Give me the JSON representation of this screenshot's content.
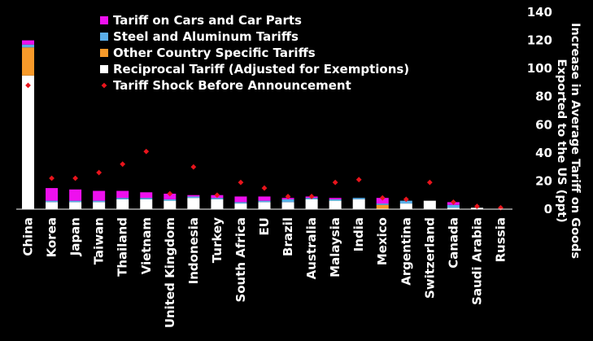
{
  "chart_data": {
    "type": "bar",
    "stacked": true,
    "ylabel": [
      "Increase in Average Tariff on Goods",
      "Exported to the US (ppt)"
    ],
    "ylim": [
      0,
      140
    ],
    "yticks": [
      0,
      20,
      40,
      60,
      80,
      100,
      120,
      140
    ],
    "axis_side": "right",
    "grid": false,
    "legend_position": "top-left",
    "categories": [
      "China",
      "Korea",
      "Japan",
      "Taiwan",
      "Thailand",
      "Vietnam",
      "United Kingdom",
      "Indonesia",
      "Turkey",
      "South Africa",
      "EU",
      "Brazil",
      "Australia",
      "Malaysia",
      "India",
      "Mexico",
      "Argentina",
      "Switzerland",
      "Canada",
      "Saudi Arabia",
      "Russia"
    ],
    "series": [
      {
        "name": "Reciprocal Tariff (Adjusted for Exemptions)",
        "color": "#ffffff",
        "values": [
          95,
          5,
          5,
          5,
          7,
          7,
          6,
          8,
          7,
          4,
          5,
          5,
          7,
          6,
          7,
          0,
          4,
          6,
          1,
          1,
          0
        ]
      },
      {
        "name": "Other Country Specific Tariffs",
        "color": "#f79a2a",
        "values": [
          20,
          0,
          0,
          0,
          0,
          0,
          0,
          0,
          0,
          0,
          0,
          0,
          0,
          0,
          0,
          3,
          0,
          0,
          0,
          0,
          0
        ]
      },
      {
        "name": "Steel and Aluminum Tariffs",
        "color": "#5aaee8",
        "values": [
          2,
          1,
          1,
          1,
          1,
          1,
          1,
          1,
          1,
          1,
          1,
          2,
          1,
          1,
          1,
          1,
          2,
          0,
          2,
          0,
          0
        ]
      },
      {
        "name": "Tariff on Cars and Car Parts",
        "color": "#ee10ee",
        "values": [
          3,
          9,
          8,
          7,
          5,
          4,
          4,
          1,
          2,
          4,
          3,
          1,
          1,
          1,
          0,
          4,
          0,
          0,
          2,
          0,
          0
        ]
      }
    ],
    "markers": {
      "name": "Tariff Shock Before Announcement",
      "color": "#e8141c",
      "values": [
        88,
        22,
        22,
        26,
        32,
        41,
        11,
        30,
        10,
        19,
        15,
        9,
        9,
        19,
        21,
        8,
        7,
        19,
        5,
        2,
        1
      ]
    },
    "legend_order": [
      "Tariff on Cars and Car Parts",
      "Steel and Aluminum Tariffs",
      "Other Country Specific Tariffs",
      "Reciprocal Tariff (Adjusted for Exemptions)",
      "Tariff Shock Before Announcement"
    ]
  }
}
